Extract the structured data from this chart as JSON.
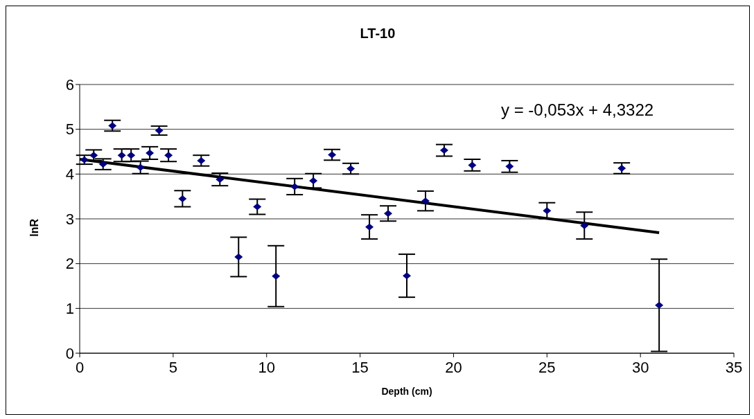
{
  "chart_data": {
    "type": "scatter",
    "title": "LT-10",
    "xlabel": "Depth (cm)",
    "ylabel": "lnR",
    "annotations": [
      "y = -0,053x + 4,3322"
    ],
    "xlim": [
      0,
      35
    ],
    "xticks": [
      0,
      5,
      10,
      15,
      20,
      25,
      30,
      35
    ],
    "ylim": [
      0,
      6
    ],
    "yticks": [
      0,
      1,
      2,
      3,
      4,
      5,
      6
    ],
    "grid": "y",
    "series": [
      {
        "marker": "diamond",
        "color": "#000080",
        "x": [
          0.25,
          0.75,
          1.25,
          1.75,
          2.25,
          2.75,
          3.25,
          3.75,
          4.25,
          4.75,
          5.5,
          6.5,
          7.5,
          8.5,
          9.5,
          10.5,
          11.5,
          12.5,
          13.5,
          14.5,
          15.5,
          16.5,
          17.5,
          18.5,
          19.5,
          21,
          23,
          25,
          27,
          29,
          31
        ],
        "values": [
          4.32,
          4.42,
          4.22,
          5.08,
          4.42,
          4.42,
          4.15,
          4.47,
          4.97,
          4.42,
          3.45,
          4.3,
          3.88,
          2.15,
          3.27,
          1.72,
          3.72,
          3.85,
          4.43,
          4.12,
          2.82,
          3.12,
          1.73,
          3.4,
          4.53,
          4.2,
          4.17,
          3.18,
          2.85,
          4.13,
          1.07
        ],
        "errors": [
          0.1,
          0.12,
          0.12,
          0.12,
          0.14,
          0.14,
          0.14,
          0.14,
          0.1,
          0.14,
          0.18,
          0.12,
          0.14,
          0.44,
          0.17,
          0.68,
          0.18,
          0.16,
          0.12,
          0.12,
          0.27,
          0.17,
          0.48,
          0.22,
          0.13,
          0.13,
          0.13,
          0.18,
          0.3,
          0.12,
          1.03
        ]
      },
      {
        "type": "line",
        "color": "#000000",
        "x": [
          0,
          31
        ],
        "values": [
          4.33,
          2.69
        ]
      }
    ]
  }
}
